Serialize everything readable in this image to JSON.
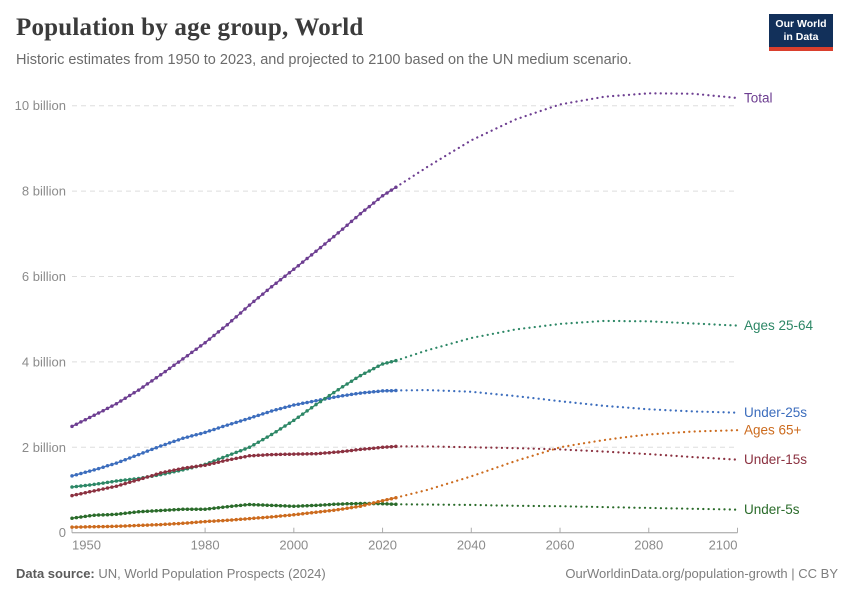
{
  "header": {
    "title": "Population by age group, World",
    "subtitle": "Historic estimates from 1950 to 2023, and projected to 2100 based on the UN medium scenario."
  },
  "logo": {
    "line1": "Our World",
    "line2": "in Data",
    "bg_color": "#12305a",
    "accent_color": "#da3f2d"
  },
  "footer": {
    "source_label": "Data source:",
    "source_value": " UN, World Population Prospects (2024)",
    "right_text": "OurWorldinData.org/population-growth | CC BY"
  },
  "chart_data": {
    "type": "line",
    "title": "Population by age group, World",
    "xlabel": "",
    "ylabel": "",
    "xlim": [
      1950,
      2100
    ],
    "ylim": [
      0,
      10.6
    ],
    "grid": "horizontal dashed",
    "legend_position": "labels at right line ends",
    "historic_end_year": 2023,
    "projection_style": "dotted",
    "x_ticks": [
      1950,
      1980,
      2000,
      2020,
      2040,
      2060,
      2080,
      2100
    ],
    "y_ticks": [
      {
        "v": 0,
        "label": "0"
      },
      {
        "v": 2,
        "label": "2 billion"
      },
      {
        "v": 4,
        "label": "4 billion"
      },
      {
        "v": 6,
        "label": "6 billion"
      },
      {
        "v": 8,
        "label": "8 billion"
      },
      {
        "v": 10,
        "label": "10 billion"
      }
    ],
    "series": [
      {
        "name": "under-25s",
        "label": "Under-25s",
        "color": "#3c6dbd",
        "historic": {
          "years": [
            1950,
            1955,
            1960,
            1965,
            1970,
            1975,
            1980,
            1985,
            1990,
            1995,
            2000,
            2005,
            2010,
            2015,
            2020,
            2023
          ],
          "values": [
            1.33,
            1.47,
            1.63,
            1.83,
            2.03,
            2.21,
            2.35,
            2.52,
            2.68,
            2.85,
            2.99,
            3.09,
            3.19,
            3.27,
            3.32,
            3.33
          ]
        },
        "projection": {
          "years": [
            2023,
            2030,
            2040,
            2050,
            2060,
            2070,
            2080,
            2090,
            2100
          ],
          "values": [
            3.33,
            3.34,
            3.3,
            3.2,
            3.08,
            2.97,
            2.89,
            2.84,
            2.81
          ]
        }
      },
      {
        "name": "ages-25-64",
        "label": "Ages 25-64",
        "color": "#2d8766",
        "historic": {
          "years": [
            1950,
            1955,
            1960,
            1965,
            1970,
            1975,
            1980,
            1985,
            1990,
            1995,
            2000,
            2005,
            2010,
            2015,
            2020,
            2023
          ],
          "values": [
            1.07,
            1.13,
            1.21,
            1.27,
            1.36,
            1.47,
            1.6,
            1.8,
            2.0,
            2.3,
            2.63,
            3.0,
            3.35,
            3.68,
            3.95,
            4.03
          ]
        },
        "projection": {
          "years": [
            2023,
            2030,
            2040,
            2050,
            2060,
            2070,
            2080,
            2090,
            2100
          ],
          "values": [
            4.03,
            4.27,
            4.56,
            4.76,
            4.89,
            4.96,
            4.95,
            4.9,
            4.85
          ]
        }
      },
      {
        "name": "under-15s",
        "label": "Under-15s",
        "color": "#8b3140",
        "historic": {
          "years": [
            1950,
            1955,
            1960,
            1965,
            1970,
            1975,
            1980,
            1985,
            1990,
            1995,
            2000,
            2005,
            2010,
            2015,
            2020,
            2023
          ],
          "values": [
            0.87,
            0.98,
            1.09,
            1.24,
            1.4,
            1.51,
            1.58,
            1.7,
            1.8,
            1.83,
            1.84,
            1.85,
            1.89,
            1.95,
            2.0,
            2.02
          ]
        },
        "projection": {
          "years": [
            2023,
            2030,
            2040,
            2050,
            2060,
            2070,
            2080,
            2090,
            2100
          ],
          "values": [
            2.02,
            2.02,
            2.0,
            1.98,
            1.95,
            1.9,
            1.84,
            1.77,
            1.71
          ]
        }
      },
      {
        "name": "under-5s",
        "label": "Under-5s",
        "color": "#2a6b2a",
        "historic": {
          "years": [
            1950,
            1955,
            1960,
            1965,
            1970,
            1975,
            1980,
            1985,
            1990,
            1995,
            2000,
            2005,
            2010,
            2015,
            2020,
            2023
          ],
          "values": [
            0.34,
            0.41,
            0.43,
            0.49,
            0.52,
            0.55,
            0.55,
            0.61,
            0.66,
            0.64,
            0.62,
            0.64,
            0.67,
            0.685,
            0.68,
            0.665
          ]
        },
        "projection": {
          "years": [
            2023,
            2030,
            2040,
            2050,
            2060,
            2070,
            2080,
            2090,
            2100
          ],
          "values": [
            0.665,
            0.66,
            0.65,
            0.63,
            0.62,
            0.6,
            0.58,
            0.56,
            0.54
          ]
        }
      },
      {
        "name": "ages-65-plus",
        "label": "Ages 65+",
        "color": "#cc6b1e",
        "historic": {
          "years": [
            1950,
            1955,
            1960,
            1965,
            1970,
            1975,
            1980,
            1985,
            1990,
            1995,
            2000,
            2005,
            2010,
            2015,
            2020,
            2023
          ],
          "values": [
            0.13,
            0.14,
            0.15,
            0.17,
            0.19,
            0.22,
            0.26,
            0.29,
            0.33,
            0.37,
            0.42,
            0.48,
            0.54,
            0.62,
            0.75,
            0.82
          ]
        },
        "projection": {
          "years": [
            2023,
            2030,
            2040,
            2050,
            2060,
            2065,
            2070,
            2075,
            2080,
            2090,
            2100
          ],
          "values": [
            0.82,
            1.0,
            1.32,
            1.68,
            2.0,
            2.09,
            2.17,
            2.24,
            2.3,
            2.37,
            2.4
          ]
        }
      },
      {
        "name": "total",
        "label": "Total",
        "color": "#6d3e91",
        "historic": {
          "years": [
            1950,
            1955,
            1960,
            1965,
            1970,
            1975,
            1980,
            1985,
            1990,
            1995,
            2000,
            2005,
            2010,
            2015,
            2020,
            2023
          ],
          "values": [
            2.49,
            2.75,
            3.02,
            3.34,
            3.7,
            4.07,
            4.45,
            4.87,
            5.33,
            5.76,
            6.17,
            6.59,
            7.02,
            7.47,
            7.89,
            8.09
          ]
        },
        "projection": {
          "years": [
            2023,
            2030,
            2040,
            2050,
            2060,
            2070,
            2080,
            2090,
            2100
          ],
          "values": [
            8.09,
            8.56,
            9.19,
            9.68,
            10.03,
            10.21,
            10.29,
            10.28,
            10.18
          ]
        }
      }
    ]
  }
}
